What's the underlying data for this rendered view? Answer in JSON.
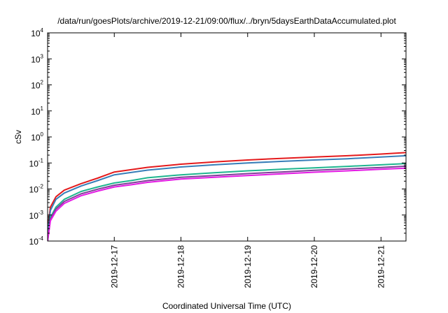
{
  "chart_data": {
    "type": "line",
    "title": "/data/run/goesPlots/archive/2019-12-21/09:00/flux/../bryn/5daysEarthDataAccumulated.plot",
    "xlabel": "Coordinated Universal Time (UTC)",
    "ylabel": "cSv",
    "y_scale": "log",
    "ylim": [
      0.0001,
      10000
    ],
    "xlim": [
      "2019-12-16T00:00",
      "2019-12-21T09:00"
    ],
    "x_tick_labels": [
      "2019-12-17",
      "2019-12-18",
      "2019-12-19",
      "2019-12-20",
      "2019-12-21"
    ],
    "y_ticks": [
      {
        "value": 0.0001,
        "base": "10",
        "exp": "-4"
      },
      {
        "value": 0.001,
        "base": "10",
        "exp": "-3"
      },
      {
        "value": 0.01,
        "base": "10",
        "exp": "-2"
      },
      {
        "value": 0.1,
        "base": "10",
        "exp": "-1"
      },
      {
        "value": 1,
        "base": "10",
        "exp": "0"
      },
      {
        "value": 10,
        "base": "10",
        "exp": "1"
      },
      {
        "value": 100,
        "base": "10",
        "exp": "2"
      },
      {
        "value": 1000,
        "base": "10",
        "exp": "3"
      },
      {
        "value": 10000,
        "base": "10",
        "exp": "4"
      }
    ],
    "grid": false,
    "legend": "none",
    "series": [
      {
        "color": "#e41a1c",
        "x": [
          "2019-12-16T00:00",
          "2019-12-16T01:00",
          "2019-12-16T03:00",
          "2019-12-16T06:00",
          "2019-12-16T12:00",
          "2019-12-16T18:00",
          "2019-12-17T00:00",
          "2019-12-17T06:00",
          "2019-12-17T12:00",
          "2019-12-18T00:00",
          "2019-12-18T12:00",
          "2019-12-19T00:00",
          "2019-12-19T12:00",
          "2019-12-20T00:00",
          "2019-12-20T12:00",
          "2019-12-21T00:00",
          "2019-12-21T09:00"
        ],
        "y": [
          0.0003,
          0.002,
          0.005,
          0.009,
          0.016,
          0.026,
          0.045,
          0.055,
          0.068,
          0.09,
          0.11,
          0.13,
          0.15,
          0.17,
          0.19,
          0.22,
          0.25
        ]
      },
      {
        "color": "#377eb8",
        "x": [
          "2019-12-16T00:00",
          "2019-12-16T01:00",
          "2019-12-16T03:00",
          "2019-12-16T06:00",
          "2019-12-16T12:00",
          "2019-12-16T18:00",
          "2019-12-17T00:00",
          "2019-12-17T06:00",
          "2019-12-17T12:00",
          "2019-12-18T00:00",
          "2019-12-18T12:00",
          "2019-12-19T00:00",
          "2019-12-19T12:00",
          "2019-12-20T00:00",
          "2019-12-20T12:00",
          "2019-12-21T00:00",
          "2019-12-21T09:00"
        ],
        "y": [
          0.0002,
          0.0015,
          0.004,
          0.007,
          0.013,
          0.021,
          0.035,
          0.043,
          0.053,
          0.07,
          0.085,
          0.1,
          0.115,
          0.13,
          0.145,
          0.17,
          0.19
        ]
      },
      {
        "color": "#1fb58f",
        "x": [
          "2019-12-16T00:00",
          "2019-12-16T01:00",
          "2019-12-16T03:00",
          "2019-12-16T06:00",
          "2019-12-16T12:00",
          "2019-12-16T18:00",
          "2019-12-17T00:00",
          "2019-12-17T06:00",
          "2019-12-17T12:00",
          "2019-12-18T00:00",
          "2019-12-18T12:00",
          "2019-12-19T00:00",
          "2019-12-19T12:00",
          "2019-12-20T00:00",
          "2019-12-20T12:00",
          "2019-12-21T00:00",
          "2019-12-21T09:00"
        ],
        "y": [
          0.0001,
          0.0008,
          0.002,
          0.004,
          0.008,
          0.012,
          0.017,
          0.021,
          0.027,
          0.035,
          0.042,
          0.05,
          0.057,
          0.065,
          0.074,
          0.085,
          0.095
        ]
      },
      {
        "color": "#7f3f98",
        "x": [
          "2019-12-16T00:00",
          "2019-12-16T01:00",
          "2019-12-16T03:00",
          "2019-12-16T06:00",
          "2019-12-16T12:00",
          "2019-12-16T18:00",
          "2019-12-17T00:00",
          "2019-12-17T06:00",
          "2019-12-17T12:00",
          "2019-12-18T00:00",
          "2019-12-18T12:00",
          "2019-12-19T00:00",
          "2019-12-19T12:00",
          "2019-12-20T00:00",
          "2019-12-20T12:00",
          "2019-12-21T00:00",
          "2019-12-21T09:00"
        ],
        "y": [
          0.0001,
          0.0007,
          0.0017,
          0.0033,
          0.0065,
          0.0098,
          0.014,
          0.017,
          0.021,
          0.028,
          0.033,
          0.039,
          0.045,
          0.052,
          0.059,
          0.067,
          0.075
        ]
      },
      {
        "color": "#e41ae4",
        "x": [
          "2019-12-16T00:00",
          "2019-12-16T01:00",
          "2019-12-16T03:00",
          "2019-12-16T06:00",
          "2019-12-16T12:00",
          "2019-12-16T18:00",
          "2019-12-17T00:00",
          "2019-12-17T06:00",
          "2019-12-17T12:00",
          "2019-12-18T00:00",
          "2019-12-18T12:00",
          "2019-12-19T00:00",
          "2019-12-19T12:00",
          "2019-12-20T00:00",
          "2019-12-20T12:00",
          "2019-12-21T00:00",
          "2019-12-21T09:00"
        ],
        "y": [
          0.0001,
          0.0006,
          0.0014,
          0.0028,
          0.0055,
          0.0083,
          0.012,
          0.0145,
          0.018,
          0.024,
          0.028,
          0.033,
          0.038,
          0.044,
          0.05,
          0.057,
          0.063
        ]
      }
    ]
  }
}
